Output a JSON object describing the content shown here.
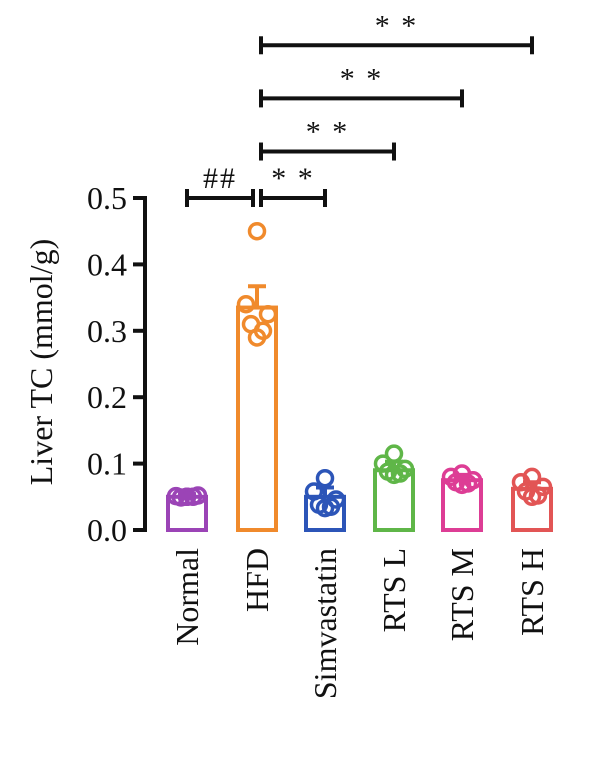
{
  "chart_data": {
    "type": "bar",
    "ylabel": "Liver TC (mmol/g)",
    "ylim": [
      0,
      0.5
    ],
    "yticks": [
      "0.0",
      "0.1",
      "0.2",
      "0.3",
      "0.4",
      "0.5"
    ],
    "ytick_values": [
      0,
      0.1,
      0.2,
      0.3,
      0.4,
      0.5
    ],
    "categories": [
      "Normal",
      "HFD",
      "Simvastatin",
      "RTS L",
      "RTS M",
      "RTS H"
    ],
    "colors": [
      "#9b44b6",
      "#f08a2c",
      "#2c55b8",
      "#5fb648",
      "#dd3d95",
      "#e25555"
    ],
    "values": [
      0.05,
      0.335,
      0.05,
      0.09,
      0.075,
      0.062
    ],
    "errors": [
      0.004,
      0.032,
      0.014,
      0.013,
      0.008,
      0.01
    ],
    "points": [
      [
        0.05,
        0.051,
        0.052,
        0.049,
        0.05,
        0.05
      ],
      [
        0.45,
        0.34,
        0.325,
        0.31,
        0.3,
        0.29
      ],
      [
        0.078,
        0.058,
        0.046,
        0.038,
        0.035,
        0.033
      ],
      [
        0.115,
        0.1,
        0.092,
        0.088,
        0.085,
        0.083
      ],
      [
        0.085,
        0.08,
        0.075,
        0.072,
        0.07,
        0.068
      ],
      [
        0.08,
        0.072,
        0.065,
        0.058,
        0.052,
        0.05
      ]
    ],
    "significance": [
      {
        "from": 0,
        "to": 1,
        "label": "##",
        "y": 0.5
      },
      {
        "from": 1,
        "to": 2,
        "label": "* *",
        "y": 0.5
      },
      {
        "from": 1,
        "to": 3,
        "label": "* *",
        "y": 0.57
      },
      {
        "from": 1,
        "to": 4,
        "label": "* *",
        "y": 0.65
      },
      {
        "from": 1,
        "to": 5,
        "label": "* *",
        "y": 0.73
      }
    ]
  }
}
